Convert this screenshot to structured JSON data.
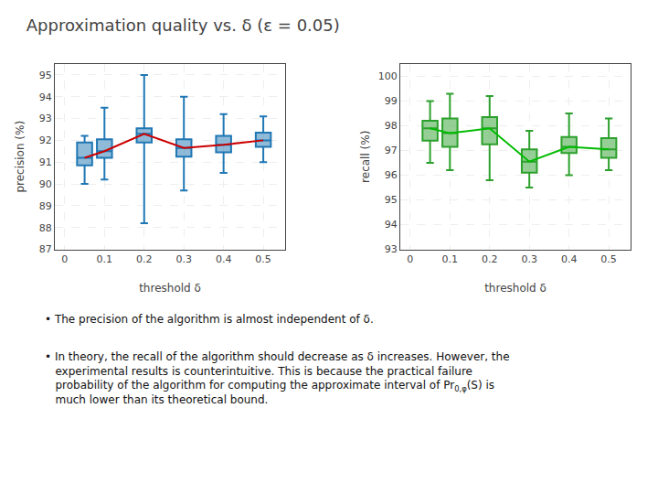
{
  "chart_data": [
    {
      "type": "box",
      "title": "Approximation quality vs. δ (ε = 0.05)",
      "xlabel": "threshold δ",
      "ylabel": "precision (%)",
      "x": [
        0.05,
        0.1,
        0.2,
        0.3,
        0.4,
        0.5
      ],
      "medians": [
        91.2,
        91.5,
        92.3,
        91.65,
        91.8,
        92.0
      ],
      "q1": [
        90.85,
        91.2,
        91.9,
        91.25,
        91.45,
        91.7
      ],
      "q3": [
        91.9,
        92.05,
        92.55,
        92.05,
        92.2,
        92.35
      ],
      "whislo": [
        90.0,
        90.2,
        88.2,
        89.7,
        90.5,
        91.0
      ],
      "whishi": [
        92.2,
        93.5,
        95.0,
        94.0,
        93.2,
        93.1
      ],
      "color": "#cc0000",
      "xlim": [
        -0.025,
        0.555
      ],
      "xticks": [
        0,
        0.1,
        0.2,
        0.3,
        0.4,
        0.5
      ],
      "ylim": [
        87,
        95.5
      ],
      "yticks": [
        87,
        88,
        89,
        90,
        91,
        92,
        93,
        94,
        95
      ],
      "grid": true,
      "annotations": [
        "• The precision of the algorithm is almost independent of δ.",
        "• In theory, the recall of the algorithm should decrease as δ increases. However, the",
        "experimental results is counterintuitive. This is because the practical failure",
        "probability of the algorithm for computing the approximate interval of Pr",
        "0,φ",
        "(S) is",
        "much lower than its theoretical bound."
      ]
    },
    {
      "type": "box",
      "xlabel": "threshold δ",
      "ylabel": "recall (%)",
      "x": [
        0.05,
        0.1,
        0.2,
        0.3,
        0.4,
        0.5
      ],
      "medians": [
        97.9,
        97.7,
        97.9,
        96.55,
        97.15,
        97.05
      ],
      "q1": [
        97.4,
        97.15,
        97.25,
        96.1,
        96.9,
        96.7
      ],
      "q3": [
        98.2,
        98.3,
        98.35,
        97.05,
        97.55,
        97.5
      ],
      "whislo": [
        96.5,
        96.2,
        95.8,
        95.5,
        96.0,
        96.2
      ],
      "whishi": [
        99.0,
        99.3,
        99.2,
        97.8,
        98.5,
        98.3
      ],
      "color": "#00bb00",
      "xlim": [
        -0.025,
        0.555
      ],
      "xticks": [
        0,
        0.1,
        0.2,
        0.3,
        0.4,
        0.5
      ],
      "ylim": [
        93,
        100.5
      ],
      "yticks": [
        93,
        94,
        95,
        96,
        97,
        98,
        99,
        100
      ],
      "grid": true
    }
  ]
}
